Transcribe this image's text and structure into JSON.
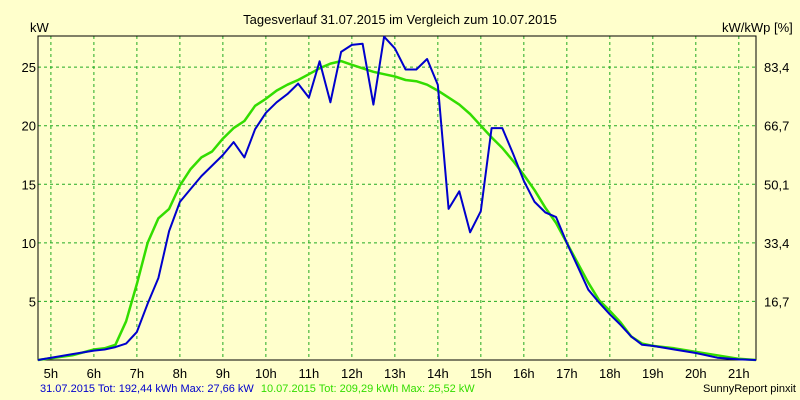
{
  "chart_data": {
    "type": "line",
    "title": "Tagesverlauf 31.07.2015 im Vergleich zum 10.07.2015",
    "ylabel_left": "kW",
    "ylabel_right": "kW/kWp [%]",
    "x_range": [
      4.7,
      21.4
    ],
    "ylim": [
      0,
      27.66
    ],
    "grid": true,
    "x_ticks": [
      {
        "value": 5,
        "label": "5h"
      },
      {
        "value": 6,
        "label": "6h"
      },
      {
        "value": 7,
        "label": "7h"
      },
      {
        "value": 8,
        "label": "8h"
      },
      {
        "value": 9,
        "label": "9h"
      },
      {
        "value": 10,
        "label": "10h"
      },
      {
        "value": 11,
        "label": "11h"
      },
      {
        "value": 12,
        "label": "12h"
      },
      {
        "value": 13,
        "label": "13h"
      },
      {
        "value": 14,
        "label": "14h"
      },
      {
        "value": 15,
        "label": "15h"
      },
      {
        "value": 16,
        "label": "16h"
      },
      {
        "value": 17,
        "label": "17h"
      },
      {
        "value": 18,
        "label": "18h"
      },
      {
        "value": 19,
        "label": "19h"
      },
      {
        "value": 20,
        "label": "20h"
      },
      {
        "value": 21,
        "label": "21h"
      }
    ],
    "y_ticks_left": [
      {
        "value": 5,
        "label": "5"
      },
      {
        "value": 10,
        "label": "10"
      },
      {
        "value": 15,
        "label": "15"
      },
      {
        "value": 20,
        "label": "20"
      },
      {
        "value": 25,
        "label": "25"
      }
    ],
    "y_ticks_right": [
      {
        "value": 5,
        "label": "16,7"
      },
      {
        "value": 10,
        "label": "33,4"
      },
      {
        "value": 15,
        "label": "50,1"
      },
      {
        "value": 20,
        "label": "66,7"
      },
      {
        "value": 25,
        "label": "83,4"
      }
    ],
    "series": [
      {
        "name": "31.07.2015",
        "color": "#0000CC",
        "x": [
          4.7,
          5.5,
          6.0,
          6.25,
          6.5,
          6.75,
          7.0,
          7.25,
          7.5,
          7.75,
          8.0,
          8.25,
          8.5,
          8.75,
          9.0,
          9.25,
          9.5,
          9.75,
          10.0,
          10.25,
          10.5,
          10.75,
          11.0,
          11.25,
          11.5,
          11.75,
          12.0,
          12.25,
          12.5,
          12.75,
          13.0,
          13.25,
          13.5,
          13.75,
          14.0,
          14.25,
          14.5,
          14.75,
          15.0,
          15.25,
          15.5,
          15.75,
          16.0,
          16.25,
          16.5,
          16.75,
          17.0,
          17.25,
          17.5,
          17.75,
          18.0,
          18.25,
          18.5,
          18.75,
          19.0,
          19.5,
          20.0,
          20.5,
          21.0,
          21.4
        ],
        "values": [
          0,
          0.5,
          0.8,
          0.9,
          1.1,
          1.4,
          2.4,
          4.8,
          7.0,
          11.0,
          13.5,
          14.6,
          15.7,
          16.6,
          17.5,
          18.6,
          17.3,
          19.7,
          21.1,
          22.0,
          22.7,
          23.6,
          22.4,
          25.5,
          22.0,
          26.3,
          26.9,
          27.0,
          21.8,
          27.6,
          26.6,
          24.8,
          24.8,
          25.7,
          23.5,
          12.9,
          14.4,
          10.9,
          12.7,
          19.8,
          19.8,
          17.6,
          15.3,
          13.5,
          12.6,
          12.2,
          10.0,
          8.0,
          6.0,
          4.9,
          3.9,
          3.0,
          2.0,
          1.3,
          1.2,
          0.9,
          0.6,
          0.2,
          0.05,
          0
        ]
      },
      {
        "name": "10.07.2015",
        "color": "#33DD00",
        "x": [
          4.7,
          5.5,
          6.0,
          6.25,
          6.5,
          6.75,
          7.0,
          7.25,
          7.5,
          7.75,
          8.0,
          8.25,
          8.5,
          8.75,
          9.0,
          9.25,
          9.5,
          9.75,
          10.0,
          10.25,
          10.5,
          10.75,
          11.0,
          11.25,
          11.5,
          11.75,
          12.0,
          12.25,
          12.5,
          12.75,
          13.0,
          13.25,
          13.5,
          13.75,
          14.0,
          14.25,
          14.5,
          14.75,
          15.0,
          15.25,
          15.5,
          15.75,
          16.0,
          16.25,
          16.5,
          16.75,
          17.0,
          17.25,
          17.5,
          17.75,
          18.0,
          18.25,
          18.5,
          18.75,
          19.0,
          19.5,
          20.0,
          20.5,
          21.0,
          21.4
        ],
        "values": [
          0,
          0.4,
          0.9,
          1.0,
          1.3,
          3.3,
          6.5,
          10.0,
          12.1,
          12.9,
          14.9,
          16.3,
          17.3,
          17.8,
          18.9,
          19.8,
          20.4,
          21.7,
          22.3,
          23.0,
          23.5,
          23.9,
          24.4,
          24.9,
          25.3,
          25.52,
          25.2,
          24.9,
          24.6,
          24.4,
          24.2,
          23.9,
          23.8,
          23.5,
          23.0,
          22.4,
          21.8,
          21.0,
          20.0,
          19.0,
          18.1,
          17.0,
          15.8,
          14.5,
          13.0,
          11.7,
          10.0,
          8.3,
          6.6,
          5.1,
          4.2,
          3.2,
          2.0,
          1.4,
          1.2,
          1.0,
          0.7,
          0.4,
          0.1,
          0
        ]
      }
    ],
    "footer": {
      "series1": "31.07.2015 Tot: 192,44 kWh Max: 27,66 kW",
      "series2": "10.07.2015 Tot: 209,29 kWh Max: 25,52 kW",
      "credit": "SunnyReport pinxit"
    }
  }
}
